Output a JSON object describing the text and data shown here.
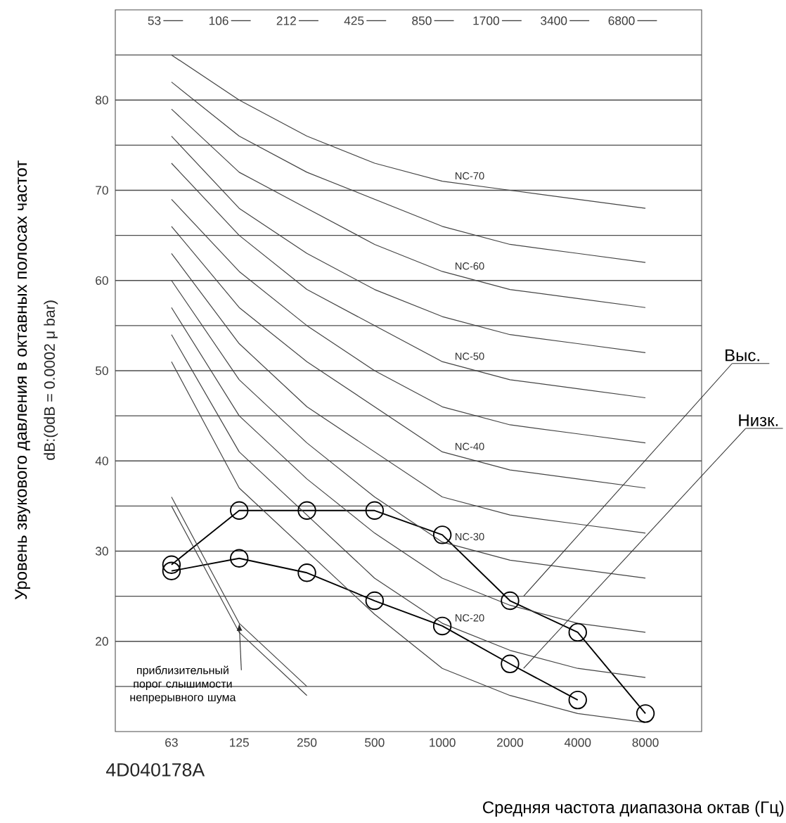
{
  "chart_data": {
    "type": "line",
    "ylabel": "Уровень звукового давления в октавных полосах частот",
    "xlabel": "Средняя частота диапазона октав (Гц)",
    "categories": [
      "63",
      "125",
      "250",
      "500",
      "1000",
      "2000",
      "4000",
      "8000"
    ],
    "ylim": [
      10,
      90
    ],
    "yticks": [
      {
        "value": 15,
        "label": null
      },
      20,
      {
        "value": 25,
        "label": null
      },
      30,
      {
        "value": 35,
        "label": null
      },
      40,
      {
        "value": 45,
        "label": null
      },
      50,
      {
        "value": 55,
        "label": null
      },
      60,
      {
        "value": 65,
        "label": null
      },
      70,
      {
        "value": 75,
        "label": null
      },
      80,
      {
        "value": 85,
        "label": null
      }
    ],
    "grid": "y",
    "marker": "circle",
    "series": [
      {
        "name": "Выс.",
        "color": "#000000",
        "values": [
          28.5,
          34.5,
          34.5,
          34.5,
          31.8,
          24.5,
          21,
          12
        ]
      },
      {
        "name": "Низк.",
        "color": "#000000",
        "values": [
          27.8,
          29.2,
          27.6,
          24.5,
          21.7,
          17.5,
          13.5,
          null
        ]
      },
      {
        "name": "NC-70",
        "color": "#444444",
        "marker": "none",
        "values": [
          85,
          80,
          76,
          73,
          71,
          70,
          69,
          68
        ]
      },
      {
        "color": "#444444",
        "marker": "none",
        "values": [
          82,
          76,
          72,
          69,
          66,
          64,
          63,
          62
        ]
      },
      {
        "name": "NC-60",
        "color": "#444444",
        "marker": "none",
        "values": [
          79,
          72,
          68,
          64,
          61,
          59,
          58,
          57
        ]
      },
      {
        "color": "#444444",
        "marker": "none",
        "values": [
          76,
          68,
          63,
          59,
          56,
          54,
          53,
          52
        ]
      },
      {
        "name": "NC-50",
        "color": "#444444",
        "marker": "none",
        "values": [
          73,
          65,
          59,
          55,
          51,
          49,
          48,
          47
        ]
      },
      {
        "color": "#444444",
        "marker": "none",
        "values": [
          69,
          61,
          55,
          50,
          46,
          44,
          43,
          42
        ]
      },
      {
        "name": "NC-40",
        "color": "#444444",
        "marker": "none",
        "values": [
          66,
          57,
          51,
          46,
          41,
          39,
          38,
          37
        ]
      },
      {
        "color": "#444444",
        "marker": "none",
        "values": [
          63,
          53,
          46,
          41,
          36,
          34,
          33,
          32
        ]
      },
      {
        "name": "NC-30",
        "color": "#444444",
        "marker": "none",
        "values": [
          60,
          49,
          42,
          36,
          31,
          29,
          28,
          27
        ]
      },
      {
        "color": "#444444",
        "marker": "none",
        "values": [
          57,
          45,
          38,
          32,
          27,
          24,
          22,
          21
        ]
      },
      {
        "name": "NC-20",
        "color": "#444444",
        "marker": "none",
        "values": [
          54,
          41,
          34,
          27,
          22,
          19,
          17,
          16
        ]
      },
      {
        "color": "#444444",
        "marker": "none",
        "values": [
          51,
          37,
          30,
          23,
          17,
          14,
          12,
          11
        ]
      },
      {
        "color": "#444444",
        "marker": "none",
        "values": [
          36,
          22,
          15,
          null,
          null,
          null,
          null,
          null
        ]
      },
      {
        "color": "#444444",
        "marker": "none",
        "values": [
          35,
          21,
          14,
          null,
          null,
          null,
          null,
          null
        ]
      }
    ],
    "annotations": [
      "dB:(0dB = 0.0002 μ bar)",
      "53",
      "106",
      "212",
      "425",
      "850",
      "1700",
      "3400",
      "6800",
      {
        "text": "приблизительный порог слышимости непрерывного шума",
        "x": "125",
        "y": 22
      },
      "4D040178A"
    ]
  }
}
